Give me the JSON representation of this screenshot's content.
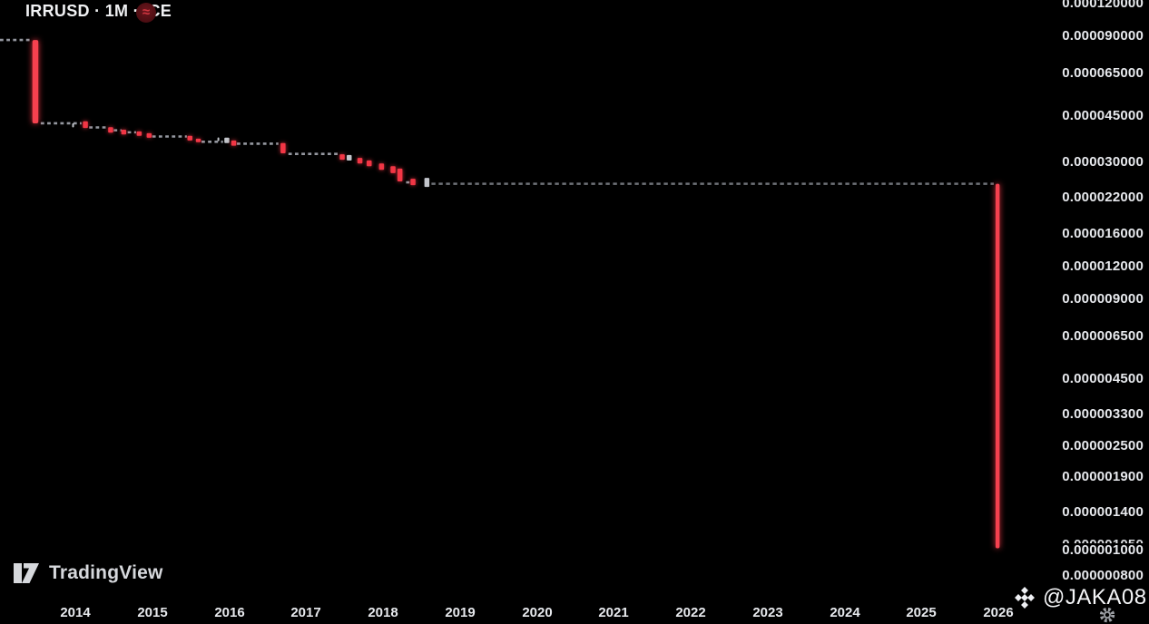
{
  "header": {
    "symbol_title": "IRRUSD · 1M · ICE",
    "badge_glyph": "≈",
    "badge_color": "#4a0d12"
  },
  "footer": {
    "logo_text": "TradingView"
  },
  "watermark": {
    "handle": "@JAKA08"
  },
  "icons": {
    "badge": "approx-equal-icon",
    "logo": "tradingview-icon",
    "watermark": "diamond-logo-icon",
    "axis_settings": "gear-icon"
  },
  "colors": {
    "background": "#000000",
    "red": "#f23645",
    "gray_candle": "#c2c5cb",
    "dash_bright": "#94979f",
    "dash_dim": "#6e7177",
    "axis_text": "#e7e9ed"
  },
  "chart_data": {
    "type": "candlestick",
    "symbol": "IRRUSD",
    "interval": "1M",
    "exchange": "ICE",
    "scale": "logarithmic",
    "grid": false,
    "x_ticks": [
      "2014",
      "2015",
      "2016",
      "2017",
      "2018",
      "2019",
      "2020",
      "2021",
      "2022",
      "2023",
      "2024",
      "2025",
      "2026"
    ],
    "y_ticks": [
      "0.000120000",
      "0.000090000",
      "0.000065000",
      "0.000045000",
      "0.000030000",
      "0.000022000",
      "0.000016000",
      "0.000012000",
      "0.000009000",
      "0.000006500",
      "0.000004500",
      "0.000003300",
      "0.000002500",
      "0.000001900",
      "0.000001400",
      "0.000001000",
      "0.000000800"
    ],
    "solid_y_tick": "0.000001000",
    "overlapped_price_label": "0.000001050",
    "x_range": [
      2013.0,
      2026.2
    ],
    "y_range": [
      8e-07,
      0.00012
    ],
    "candles": [
      [
        2013.48,
        8.73e-05,
        4.21e-05,
        "red",
        6.5
      ],
      [
        2013.97,
        4.21e-05,
        4.06e-05,
        "gray",
        2
      ],
      [
        2014.13,
        4.28e-05,
        4.04e-05,
        "red",
        5.5
      ],
      [
        2014.46,
        4.07e-05,
        3.88e-05,
        "red",
        5.5
      ],
      [
        2014.63,
        3.98e-05,
        3.82e-05,
        "red",
        5.5
      ],
      [
        2014.83,
        3.92e-05,
        3.77e-05,
        "red",
        5.5
      ],
      [
        2014.96,
        3.86e-05,
        3.71e-05,
        "red",
        5.5
      ],
      [
        2015.49,
        3.77e-05,
        3.62e-05,
        "red",
        5.5
      ],
      [
        2015.6,
        3.68e-05,
        3.57e-05,
        "red",
        5.5
      ],
      [
        2015.86,
        3.72e-05,
        3.6e-05,
        "gray",
        2
      ],
      [
        2015.97,
        3.71e-05,
        3.54e-05,
        "gray",
        5.5
      ],
      [
        2016.06,
        3.62e-05,
        3.46e-05,
        "red",
        5.5
      ],
      [
        2016.7,
        3.54e-05,
        3.24e-05,
        "red",
        5.5
      ],
      [
        2017.47,
        3.21e-05,
        3.06e-05,
        "red",
        5.5
      ],
      [
        2017.56,
        3.19e-05,
        3.04e-05,
        "gray",
        5.5
      ],
      [
        2017.7,
        3.11e-05,
        2.96e-05,
        "red",
        5.5
      ],
      [
        2017.82,
        3.04e-05,
        2.89e-05,
        "red",
        5.5
      ],
      [
        2017.98,
        2.96e-05,
        2.8e-05,
        "red",
        5.5
      ],
      [
        2018.13,
        2.89e-05,
        2.72e-05,
        "red",
        5.5
      ],
      [
        2018.22,
        2.83e-05,
        2.53e-05,
        "red",
        5.5
      ],
      [
        2018.39,
        2.59e-05,
        2.45e-05,
        "red",
        5.5
      ],
      [
        2018.57,
        2.61e-05,
        2.41e-05,
        "gray",
        5.5
      ],
      [
        2025.99,
        2.48e-05,
        1.02e-06,
        "red",
        4.5
      ]
    ],
    "flat_segments": [
      [
        2013.02,
        2013.42,
        8.73e-05,
        "bright"
      ],
      [
        2013.55,
        2014.08,
        4.21e-05,
        "bright"
      ],
      [
        2014.18,
        2014.42,
        4.06e-05,
        "bright"
      ],
      [
        2014.5,
        2014.6,
        3.96e-05,
        "bright"
      ],
      [
        2014.68,
        2014.79,
        3.89e-05,
        "bright"
      ],
      [
        2015.0,
        2015.45,
        3.75e-05,
        "bright"
      ],
      [
        2015.64,
        2015.92,
        3.58e-05,
        "bright"
      ],
      [
        2016.1,
        2016.64,
        3.52e-05,
        "bright"
      ],
      [
        2016.77,
        2017.43,
        3.22e-05,
        "bright"
      ],
      [
        2018.3,
        2018.36,
        2.51e-05,
        "bright"
      ],
      [
        2018.63,
        2025.94,
        2.48e-05,
        "dim"
      ]
    ]
  }
}
